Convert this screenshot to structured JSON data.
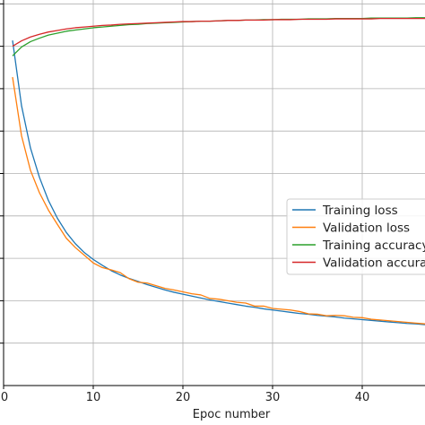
{
  "chart_data": {
    "type": "line",
    "title": "",
    "xlabel": "Epoc number",
    "ylabel": "",
    "xlim": [
      0,
      47
    ],
    "ylim": [
      0,
      1
    ],
    "x_ticks": [
      0,
      10,
      20,
      30,
      40
    ],
    "x_tick_labels": [
      "0",
      "10",
      "20",
      "30",
      "40"
    ],
    "y_grid": [
      0.11,
      0.22,
      0.33,
      0.44,
      0.55,
      0.66,
      0.77,
      0.88,
      0.99
    ],
    "grid": true,
    "legend_position": "center-right",
    "x": [
      1,
      2,
      3,
      4,
      5,
      6,
      7,
      8,
      9,
      10,
      11,
      12,
      13,
      14,
      15,
      16,
      17,
      18,
      19,
      20,
      21,
      22,
      23,
      24,
      25,
      26,
      27,
      28,
      29,
      30,
      31,
      32,
      33,
      34,
      35,
      36,
      37,
      38,
      39,
      40,
      41,
      42,
      43,
      44,
      45,
      46,
      47
    ],
    "series": [
      {
        "name": "Training loss",
        "color": "#1f77b4",
        "values": [
          0.895,
          0.726,
          0.616,
          0.54,
          0.48,
          0.434,
          0.397,
          0.368,
          0.345,
          0.327,
          0.312,
          0.298,
          0.287,
          0.278,
          0.27,
          0.262,
          0.255,
          0.248,
          0.242,
          0.237,
          0.232,
          0.227,
          0.222,
          0.218,
          0.214,
          0.21,
          0.206,
          0.203,
          0.199,
          0.196,
          0.193,
          0.19,
          0.187,
          0.185,
          0.182,
          0.18,
          0.178,
          0.175,
          0.173,
          0.171,
          0.169,
          0.167,
          0.165,
          0.163,
          0.161,
          0.16,
          0.158
        ]
      },
      {
        "name": "Validation loss",
        "color": "#ff7f0e",
        "values": [
          0.8,
          0.648,
          0.558,
          0.5,
          0.455,
          0.418,
          0.382,
          0.358,
          0.338,
          0.318,
          0.306,
          0.3,
          0.293,
          0.277,
          0.268,
          0.266,
          0.259,
          0.252,
          0.248,
          0.243,
          0.238,
          0.235,
          0.226,
          0.224,
          0.22,
          0.216,
          0.214,
          0.206,
          0.206,
          0.2,
          0.198,
          0.196,
          0.192,
          0.186,
          0.185,
          0.181,
          0.182,
          0.181,
          0.177,
          0.176,
          0.172,
          0.17,
          0.168,
          0.166,
          0.164,
          0.162,
          0.16
        ]
      },
      {
        "name": "Training accuracy",
        "color": "#2ca02c",
        "values": [
          0.855,
          0.878,
          0.892,
          0.901,
          0.909,
          0.914,
          0.919,
          0.922,
          0.925,
          0.928,
          0.93,
          0.932,
          0.934,
          0.936,
          0.937,
          0.939,
          0.94,
          0.941,
          0.942,
          0.943,
          0.944,
          0.945,
          0.945,
          0.946,
          0.947,
          0.947,
          0.948,
          0.948,
          0.949,
          0.949,
          0.95,
          0.95,
          0.95,
          0.951,
          0.951,
          0.951,
          0.952,
          0.952,
          0.952,
          0.952,
          0.953,
          0.953,
          0.953,
          0.953,
          0.953,
          0.954,
          0.954
        ]
      },
      {
        "name": "Validation accuracy",
        "color": "#d62728",
        "values": [
          0.88,
          0.894,
          0.904,
          0.911,
          0.917,
          0.921,
          0.925,
          0.928,
          0.93,
          0.932,
          0.934,
          0.935,
          0.937,
          0.938,
          0.939,
          0.94,
          0.941,
          0.942,
          0.943,
          0.944,
          0.944,
          0.945,
          0.945,
          0.946,
          0.947,
          0.947,
          0.948,
          0.948,
          0.948,
          0.949,
          0.949,
          0.949,
          0.95,
          0.95,
          0.95,
          0.95,
          0.951,
          0.951,
          0.951,
          0.951,
          0.951,
          0.952,
          0.952,
          0.952,
          0.952,
          0.952,
          0.952
        ]
      }
    ]
  },
  "legend": {
    "items": [
      {
        "label": "Training loss",
        "color": "#1f77b4"
      },
      {
        "label": "Validation loss",
        "color": "#ff7f0e"
      },
      {
        "label": "Training accuracy",
        "color": "#2ca02c"
      },
      {
        "label": "Validation accuracy",
        "color": "#d62728"
      }
    ]
  }
}
